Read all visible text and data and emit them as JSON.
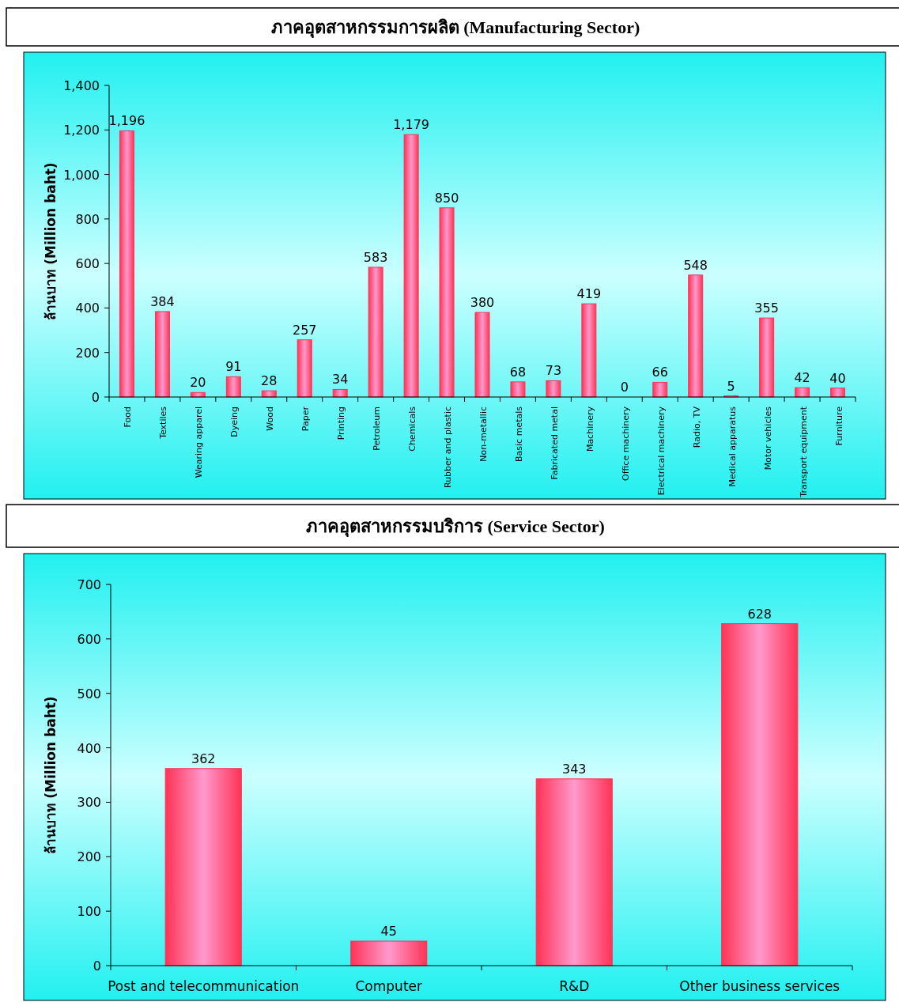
{
  "chart_data": [
    {
      "type": "bar",
      "title": "ภาคอุตสาหกรรมการผลิต (Manufacturing Sector)",
      "ylabel": "ล้านบาท (Million baht)",
      "categories": [
        "Food",
        "Textiles",
        "Wearing apparel",
        "Dyeing",
        "Wood",
        "Paper",
        "Printing",
        "Petroleum",
        "Chemicals",
        "Rubber and plastic",
        "Non-metallic",
        "Basic metals",
        "Fabricated metal",
        "Machinery",
        "Office machinery",
        "Electrical machinery",
        "Radio, TV",
        "Medical apparatus",
        "Motor vehicles",
        "Transport equipment",
        "Furniture"
      ],
      "values": [
        1196,
        384,
        20,
        91,
        28,
        257,
        34,
        583,
        1179,
        850,
        380,
        68,
        73,
        419,
        0,
        66,
        548,
        5,
        355,
        42,
        40
      ],
      "value_labels": [
        "1,196",
        "384",
        "20",
        "91",
        "28",
        "257",
        "34",
        "583",
        "1,179",
        "850",
        "380",
        "68",
        "73",
        "419",
        "0",
        "66",
        "548",
        "5",
        "355",
        "42",
        "40"
      ],
      "color": "#ff3355",
      "ylim": [
        0,
        1400
      ],
      "yticks": [
        0,
        200,
        400,
        600,
        800,
        {
          "value": 1000,
          "label": "1,000"
        },
        {
          "value": 1200,
          "label": "1,200"
        },
        {
          "value": 1400,
          "label": "1,400"
        }
      ],
      "grid": false
    },
    {
      "type": "bar",
      "title": "ภาคอุตสาหกรรมบริการ (Service Sector)",
      "ylabel": "ล้านบาท (Million baht)",
      "categories": [
        "Post and telecommunication",
        "Computer",
        "R&D",
        "Other business services"
      ],
      "values": [
        362,
        45,
        343,
        628
      ],
      "data_labels": true,
      "color": "#ff3355",
      "ylim": [
        0,
        700
      ],
      "yticks": [
        0,
        100,
        200,
        300,
        400,
        500,
        600,
        700
      ],
      "grid": false
    }
  ]
}
